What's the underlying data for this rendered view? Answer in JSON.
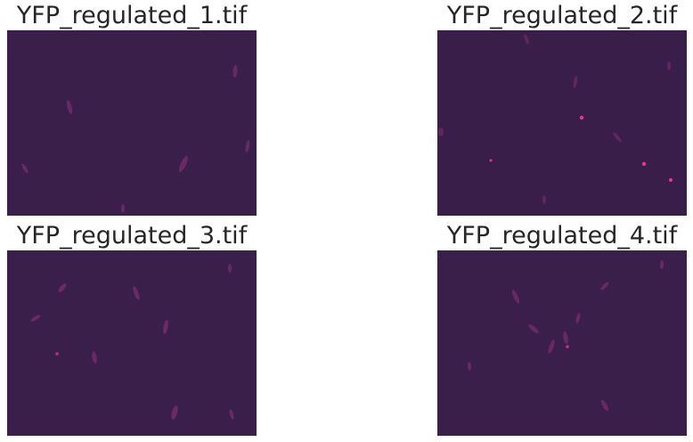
{
  "panels": [
    {
      "title": "YFP_regulated_1.tif",
      "background": "#3a1f4a",
      "cell_color": "#7a2e6e",
      "spot_color": "#d8337a"
    },
    {
      "title": "YFP_regulated_2.tif",
      "background": "#391e49",
      "cell_color": "#6f2a66",
      "spot_color": "#e8368a"
    },
    {
      "title": "YFP_regulated_3.tif",
      "background": "#3b1f4b",
      "cell_color": "#7c2f70",
      "spot_color": "#c7306f"
    },
    {
      "title": "YFP_regulated_4.tif",
      "background": "#3a1f4a",
      "cell_color": "#7a2d6c",
      "spot_color": "#cf3178"
    }
  ]
}
